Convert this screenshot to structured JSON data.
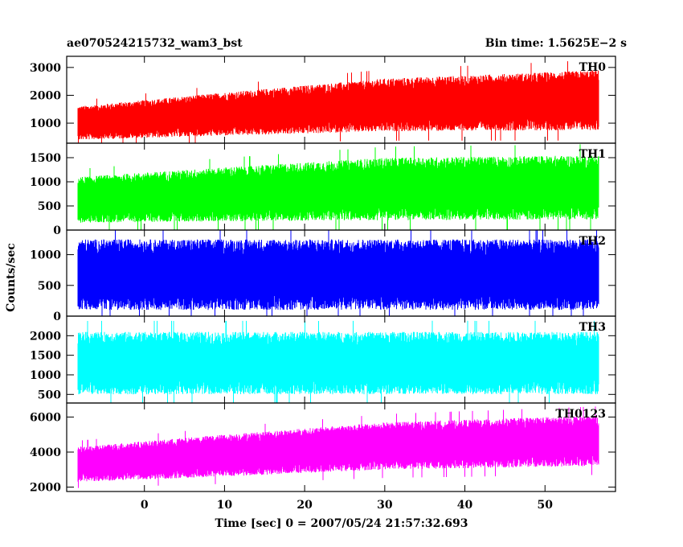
{
  "chart_data": {
    "type": "line",
    "title_left": "ae070524215732_wam3_bst",
    "title_right": "Bin time: 1.5625E−2 s",
    "xlabel": "Time [sec] 0 = 2007/05/24 21:57:32.693",
    "ylabel": "Counts/sec",
    "xlim": [
      -9.7,
      58.8
    ],
    "x_data_range": [
      -8.3,
      56.7
    ],
    "x_ticks": [
      0,
      10,
      20,
      30,
      40,
      50
    ],
    "x_tick_labels": [
      "0",
      "10",
      "20",
      "30",
      "40",
      "50"
    ],
    "panels": [
      {
        "name": "TH0",
        "color": "#ff0000",
        "ylim": [
          280,
          3400
        ],
        "y_ticks": [
          1000,
          2000,
          3000
        ],
        "y_tick_labels": [
          "1000",
          "2000",
          "3000"
        ],
        "trend": [
          {
            "x": -8.3,
            "low": 400,
            "high": 1600
          },
          {
            "x": 10,
            "low": 550,
            "high": 2100
          },
          {
            "x": 30,
            "low": 700,
            "high": 2600
          },
          {
            "x": 56.7,
            "low": 750,
            "high": 2900
          }
        ]
      },
      {
        "name": "TH1",
        "color": "#00ff00",
        "ylim": [
          0,
          1800
        ],
        "y_ticks": [
          0,
          500,
          1000,
          1500
        ],
        "y_tick_labels": [
          "0",
          "500",
          "1000",
          "1500"
        ],
        "trend": [
          {
            "x": -8.3,
            "low": 150,
            "high": 1100
          },
          {
            "x": 10,
            "low": 180,
            "high": 1300
          },
          {
            "x": 30,
            "low": 200,
            "high": 1500
          },
          {
            "x": 56.7,
            "low": 220,
            "high": 1550
          }
        ]
      },
      {
        "name": "TH2",
        "color": "#0000ff",
        "ylim": [
          0,
          1400
        ],
        "y_ticks": [
          0,
          500,
          1000
        ],
        "y_tick_labels": [
          "0",
          "500",
          "1000"
        ],
        "trend": [
          {
            "x": -8.3,
            "low": 100,
            "high": 1250
          },
          {
            "x": 56.7,
            "low": 100,
            "high": 1250
          }
        ]
      },
      {
        "name": "TH3",
        "color": "#00ffff",
        "ylim": [
          280,
          2500
        ],
        "y_ticks": [
          500,
          1000,
          1500,
          2000
        ],
        "y_tick_labels": [
          "500",
          "1000",
          "1500",
          "2000"
        ],
        "trend": [
          {
            "x": -8.3,
            "low": 500,
            "high": 2100
          },
          {
            "x": 56.7,
            "low": 500,
            "high": 2100
          }
        ]
      },
      {
        "name": "TH0123",
        "color": "#ff00ff",
        "ylim": [
          1750,
          6800
        ],
        "y_ticks": [
          2000,
          4000,
          6000
        ],
        "y_tick_labels": [
          "2000",
          "4000",
          "6000"
        ],
        "trend": [
          {
            "x": -8.3,
            "low": 2300,
            "high": 4300
          },
          {
            "x": 10,
            "low": 2600,
            "high": 5000
          },
          {
            "x": 30,
            "low": 3000,
            "high": 5700
          },
          {
            "x": 56.7,
            "low": 3200,
            "high": 6100
          }
        ]
      }
    ],
    "grid": false,
    "legend": "none"
  }
}
